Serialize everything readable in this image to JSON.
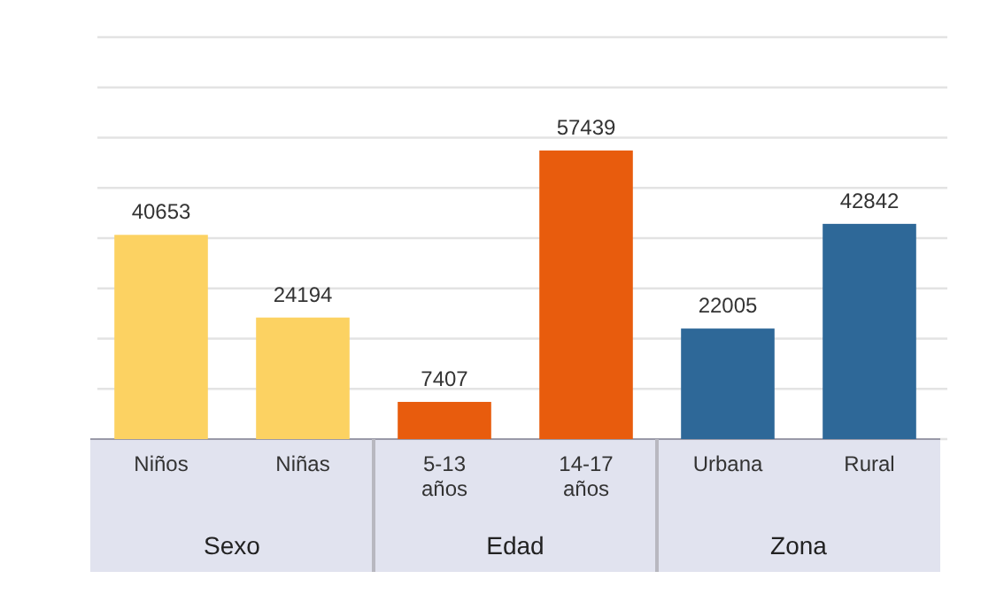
{
  "chart_data": {
    "type": "bar",
    "categories": [
      "Niños",
      "Niñas",
      "5-13 años",
      "14-17 años",
      "Urbana",
      "Rural"
    ],
    "values": [
      40653,
      24194,
      7407,
      57439,
      22005,
      42842
    ],
    "colors": [
      "#fcd262",
      "#fcd262",
      "#e85c0d",
      "#e85c0d",
      "#2e6898",
      "#2e6898"
    ],
    "annotations": [
      "Sexo",
      "Edad",
      "Zona"
    ],
    "ylim": [
      0,
      80000
    ],
    "yticks": [
      {
        "value": 0,
        "label": null
      },
      {
        "value": 10000,
        "label": null
      },
      {
        "value": 20000,
        "label": null
      },
      {
        "value": 30000,
        "label": null
      },
      {
        "value": 40000,
        "label": null
      },
      {
        "value": 50000,
        "label": null
      },
      {
        "value": 60000,
        "label": null
      },
      {
        "value": 70000,
        "label": null
      },
      {
        "value": 80000,
        "label": null
      }
    ],
    "grid": "y",
    "tick_labels": "x",
    "data_labels": true
  }
}
